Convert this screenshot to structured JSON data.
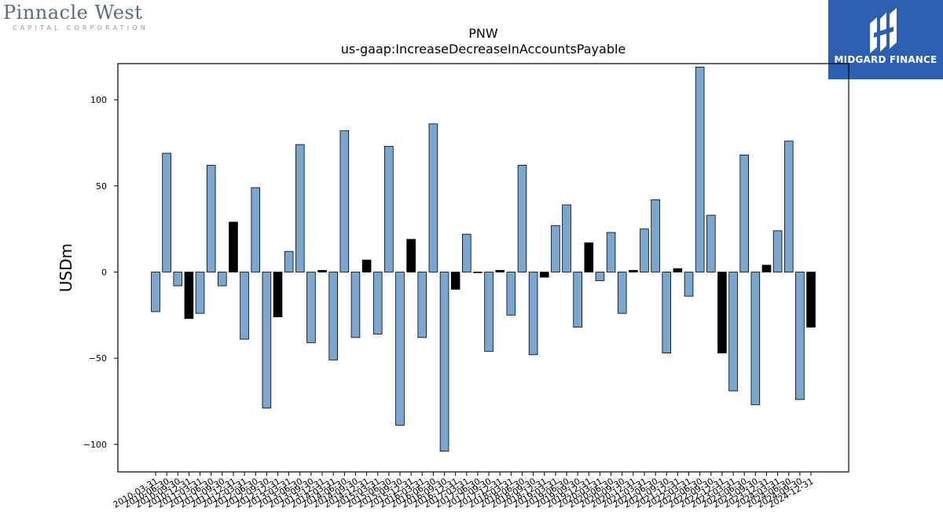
{
  "logo_left": {
    "line1": "Pinnacle West",
    "line2": "CAPITAL CORPORATION"
  },
  "logo_right": {
    "text": "MIDGARD FINANCE"
  },
  "chart_data": {
    "type": "bar",
    "title": "PNW",
    "subtitle": "us-gaap:IncreaseDecreaseInAccountsPayable",
    "xlabel": "",
    "ylabel": "USDm",
    "ylim": [
      -116,
      121
    ],
    "yticks": [
      -100,
      -50,
      0,
      50,
      100
    ],
    "grid": false,
    "colors": {
      "quarter": "#7aa7cf",
      "q4": "#000000",
      "edge": "#000000"
    },
    "categories": [
      "2010-03-31",
      "2010-06-30",
      "2010-09-30",
      "2010-12-31",
      "2011-03-31",
      "2011-06-30",
      "2011-09-30",
      "2011-12-31",
      "2012-03-31",
      "2012-06-30",
      "2012-09-30",
      "2012-12-31",
      "2013-03-31",
      "2013-06-30",
      "2013-09-30",
      "2013-12-31",
      "2014-03-31",
      "2014-06-30",
      "2014-09-30",
      "2014-12-31",
      "2015-03-31",
      "2015-06-30",
      "2015-09-30",
      "2015-12-31",
      "2016-03-31",
      "2016-06-30",
      "2016-09-30",
      "2016-12-31",
      "2017-03-31",
      "2017-06-30",
      "2017-09-30",
      "2017-12-31",
      "2018-03-31",
      "2018-06-30",
      "2018-09-30",
      "2018-12-31",
      "2019-03-31",
      "2019-06-30",
      "2019-09-30",
      "2019-12-31",
      "2020-03-31",
      "2020-06-30",
      "2020-09-30",
      "2020-12-31",
      "2021-03-31",
      "2021-06-30",
      "2021-09-30",
      "2021-12-31",
      "2022-03-31",
      "2022-06-30",
      "2022-09-30",
      "2022-12-31",
      "2023-03-31",
      "2023-06-30",
      "2023-09-30",
      "2023-12-31",
      "2024-03-31",
      "2024-06-30",
      "2024-09-30",
      "2024-12-31"
    ],
    "values": [
      -23,
      69,
      -8,
      -27,
      -24,
      62,
      -8,
      29,
      -39,
      49,
      -79,
      -26,
      12,
      74,
      -41,
      1,
      -51,
      82,
      -38,
      7,
      -36,
      73,
      -89,
      19,
      -38,
      86,
      -104,
      -10,
      22,
      0,
      -46,
      1,
      -25,
      62,
      -48,
      -3,
      27,
      39,
      -32,
      17,
      -5,
      23,
      -24,
      1,
      25,
      42,
      -47,
      2,
      -14,
      119,
      33,
      -47,
      -69,
      68,
      -77,
      4,
      24,
      76,
      -74,
      -32
    ]
  }
}
